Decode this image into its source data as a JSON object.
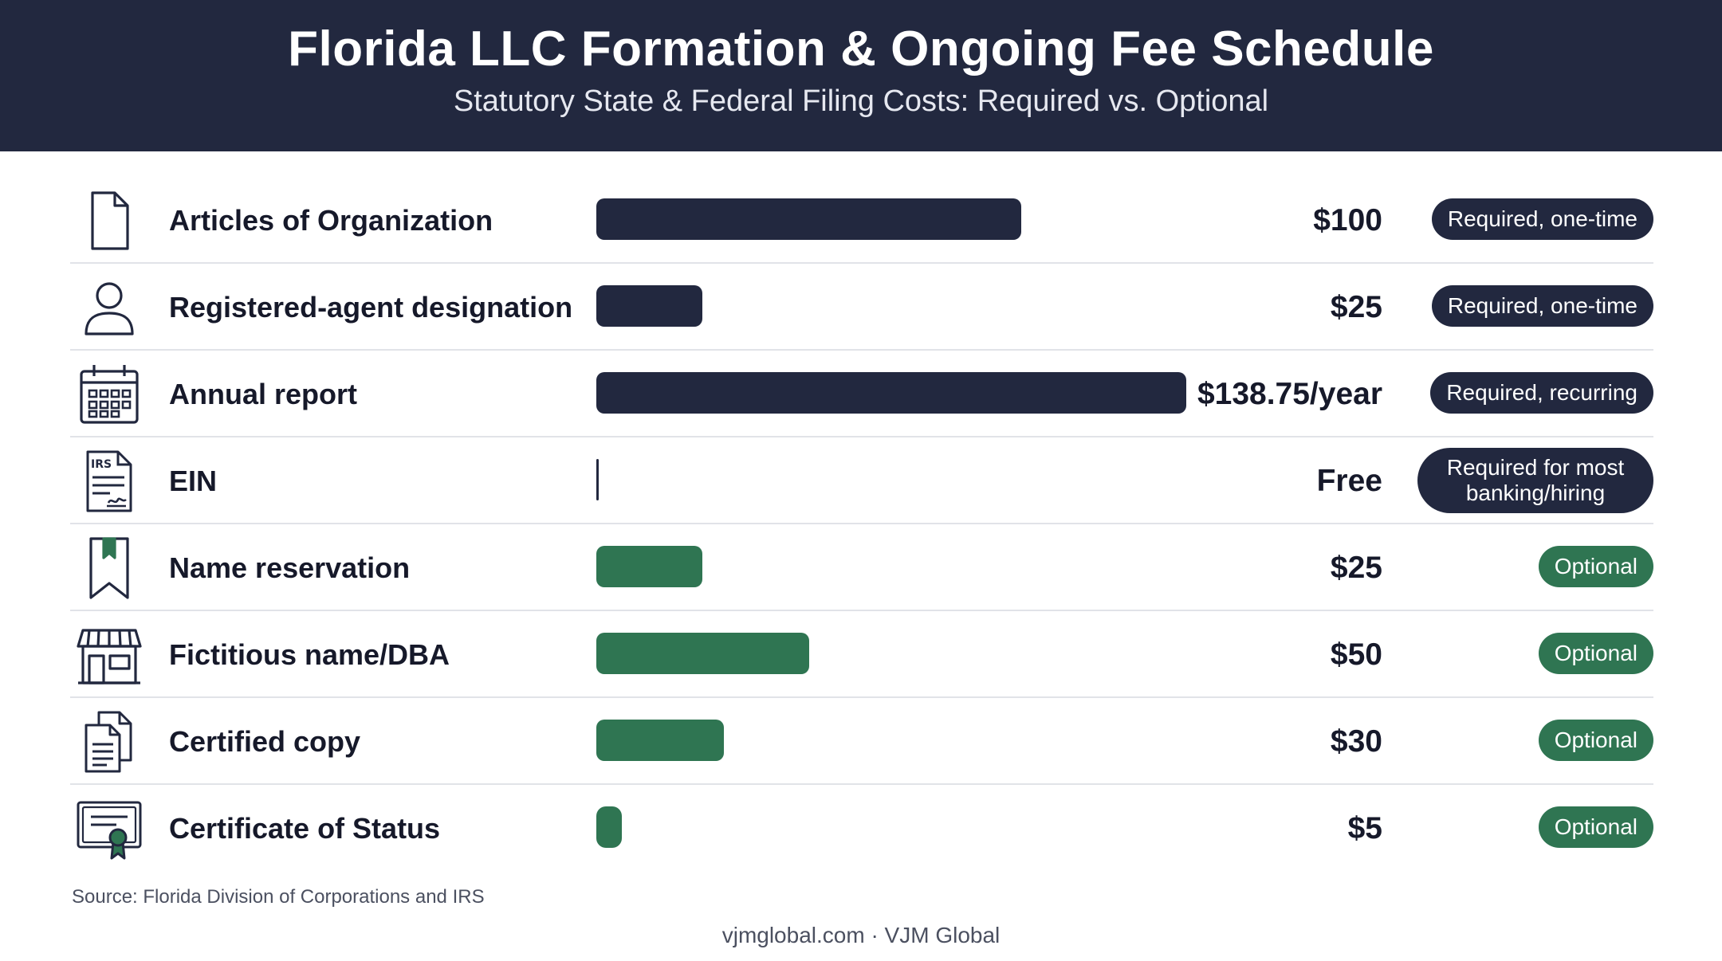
{
  "header": {
    "title": "Florida LLC Formation & Ongoing Fee Schedule",
    "subtitle": "Statutory State & Federal Filing Costs: Required vs. Optional"
  },
  "colors": {
    "required": "#22283f",
    "optional": "#2f7552"
  },
  "chart_data": {
    "type": "bar",
    "orientation": "horizontal",
    "title": "Florida LLC Formation & Ongoing Fee Schedule",
    "subtitle": "Statutory State & Federal Filing Costs: Required vs. Optional",
    "xlabel": "",
    "ylabel": "",
    "xlim": [
      0,
      138.75
    ],
    "grid": false,
    "categories": [
      "Articles of Organization",
      "Registered-agent designation",
      "Annual report",
      "EIN",
      "Name reservation",
      "Fictitious name/DBA",
      "Certified copy",
      "Certificate of Status"
    ],
    "values": [
      100,
      25,
      138.75,
      0,
      25,
      50,
      30,
      5
    ],
    "rows": [
      {
        "label": "Articles of Organization",
        "value": 100,
        "value_label": "$100",
        "status": "Required, one-time",
        "group": "required",
        "icon": "document-icon"
      },
      {
        "label": "Registered-agent designation",
        "value": 25,
        "value_label": "$25",
        "status": "Required, one-time",
        "group": "required",
        "icon": "person-icon"
      },
      {
        "label": "Annual report",
        "value": 138.75,
        "value_label": "$138.75/year",
        "status": "Required, recurring",
        "group": "required",
        "icon": "calendar-icon"
      },
      {
        "label": "EIN",
        "value": 0,
        "value_label": "Free",
        "status": "Required for most banking/hiring",
        "group": "required",
        "icon": "irs-form-icon"
      },
      {
        "label": "Name reservation",
        "value": 25,
        "value_label": "$25",
        "status": "Optional",
        "group": "optional",
        "icon": "bookmark-icon"
      },
      {
        "label": "Fictitious name/DBA",
        "value": 50,
        "value_label": "$50",
        "status": "Optional",
        "group": "optional",
        "icon": "storefront-icon"
      },
      {
        "label": "Certified copy",
        "value": 30,
        "value_label": "$30",
        "status": "Optional",
        "group": "optional",
        "icon": "copy-documents-icon"
      },
      {
        "label": "Certificate of Status",
        "value": 5,
        "value_label": "$5",
        "status": "Optional",
        "group": "optional",
        "icon": "certificate-icon"
      }
    ]
  },
  "source": "Source: Florida Division of Corporations and IRS",
  "footer": "vjmglobal.com · VJM Global"
}
